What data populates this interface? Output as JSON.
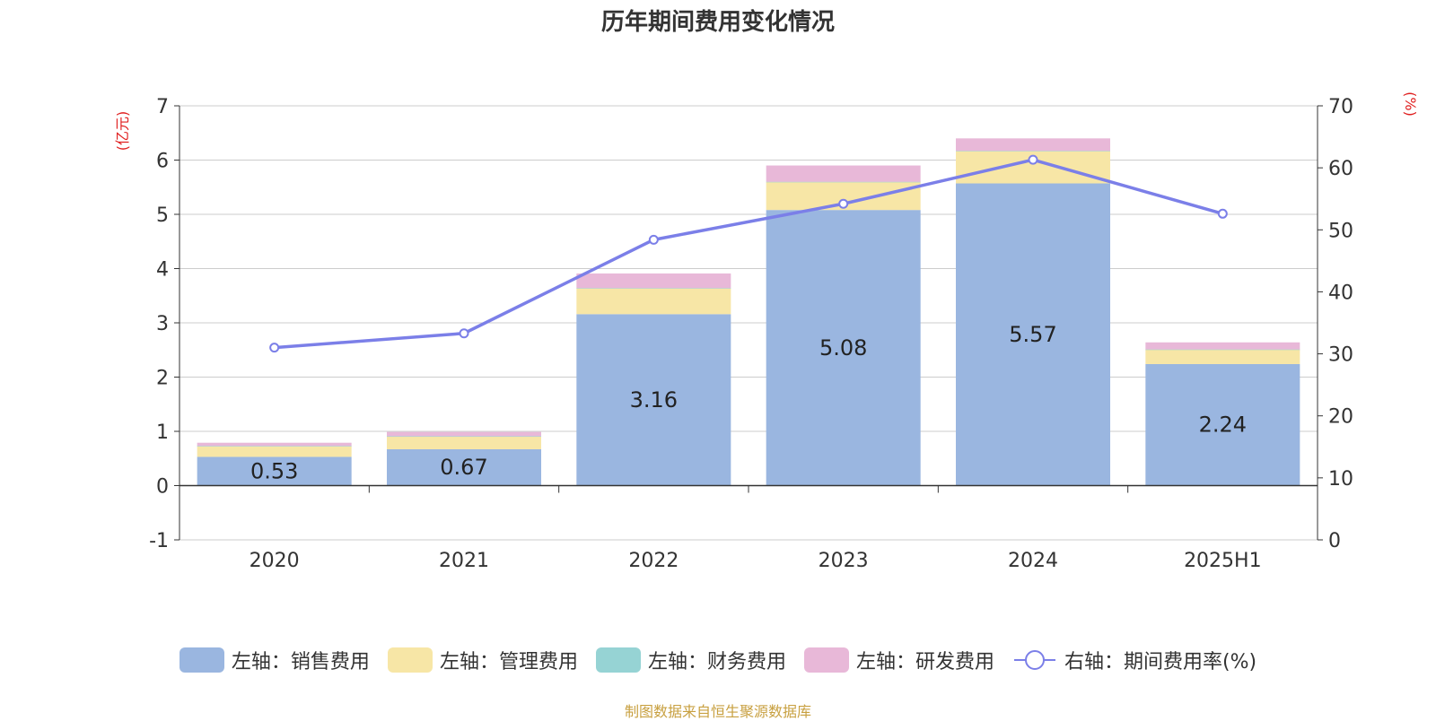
{
  "title": "历年期间费用变化情况",
  "source": "制图数据来自恒生聚源数据库",
  "left_axis_unit": "(亿元)",
  "right_axis_unit": "(%)",
  "chart_data": {
    "type": "bar",
    "stacked": true,
    "categories": [
      "2020",
      "2021",
      "2022",
      "2023",
      "2024",
      "2025H1"
    ],
    "series": [
      {
        "name": "左轴：销售费用",
        "axis": "left",
        "color": "#9ab6e0",
        "values": [
          0.53,
          0.67,
          3.16,
          5.08,
          5.57,
          2.24
        ],
        "labels": [
          "0.53",
          "0.67",
          "3.16",
          "5.08",
          "5.57",
          "2.24"
        ]
      },
      {
        "name": "左轴：管理费用",
        "axis": "left",
        "color": "#f7e6a6",
        "values": [
          0.2,
          0.24,
          0.48,
          0.52,
          0.6,
          0.27
        ]
      },
      {
        "name": "左轴：财务费用",
        "axis": "left",
        "color": "#96d3d4",
        "values": [
          0.0,
          0.0,
          0.0,
          0.0,
          0.0,
          0.0
        ]
      },
      {
        "name": "左轴：研发费用",
        "axis": "left",
        "color": "#e8b8d8",
        "values": [
          0.06,
          0.08,
          0.27,
          0.3,
          0.23,
          0.13
        ]
      },
      {
        "name": "右轴：期间费用率(%)",
        "axis": "right",
        "type": "line",
        "color": "#7b7fe8",
        "values": [
          31.0,
          33.3,
          48.4,
          54.2,
          61.3,
          52.6
        ]
      }
    ],
    "left_ylim": [
      -1,
      7
    ],
    "left_ticks": [
      -1,
      0,
      1,
      2,
      3,
      4,
      5,
      6,
      7
    ],
    "right_ylim": [
      0,
      70
    ],
    "right_ticks": [
      0,
      10,
      20,
      30,
      40,
      50,
      60,
      70
    ],
    "grid": true,
    "legend_position": "bottom"
  }
}
